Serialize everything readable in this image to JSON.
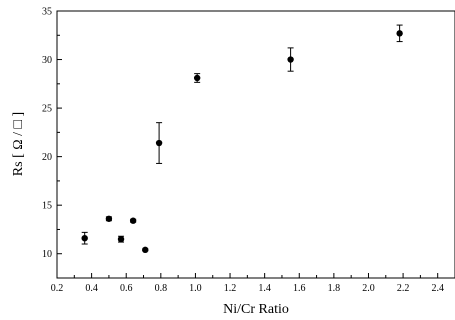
{
  "chart_data": {
    "type": "scatter",
    "title": "",
    "xlabel": "Ni/Cr Ratio",
    "ylabel": "Rs [ Ω / □ ]",
    "xlim": [
      0.2,
      2.5
    ],
    "ylim": [
      7.5,
      35
    ],
    "x_ticks": [
      0.2,
      0.4,
      0.6,
      0.8,
      1.0,
      1.2,
      1.4,
      1.6,
      1.8,
      2.0,
      2.2,
      2.4
    ],
    "x_tick_labels": [
      "0.2",
      "0.4",
      "0.6",
      "0.8",
      "1.0",
      "1.2",
      "1.4",
      "1.6",
      "1.8",
      "2.0",
      "2.2",
      "2.4"
    ],
    "y_ticks": [
      10,
      15,
      20,
      25,
      30,
      35
    ],
    "y_tick_labels": [
      "10",
      "15",
      "20",
      "25",
      "30",
      "35"
    ],
    "grid": false,
    "series": [
      {
        "marker": "filled-circle",
        "color": "#000000",
        "points": [
          {
            "x": 0.36,
            "y": 11.6,
            "err": 0.6
          },
          {
            "x": 0.5,
            "y": 13.6,
            "err": 0.2
          },
          {
            "x": 0.57,
            "y": 11.5,
            "err": 0.3
          },
          {
            "x": 0.64,
            "y": 13.4,
            "err": 0.15
          },
          {
            "x": 0.71,
            "y": 10.4,
            "err": 0.1
          },
          {
            "x": 0.79,
            "y": 21.4,
            "err": 2.1
          },
          {
            "x": 1.01,
            "y": 28.1,
            "err": 0.45
          },
          {
            "x": 1.55,
            "y": 30.0,
            "err": 1.2
          },
          {
            "x": 2.18,
            "y": 32.7,
            "err": 0.85
          }
        ]
      }
    ]
  }
}
